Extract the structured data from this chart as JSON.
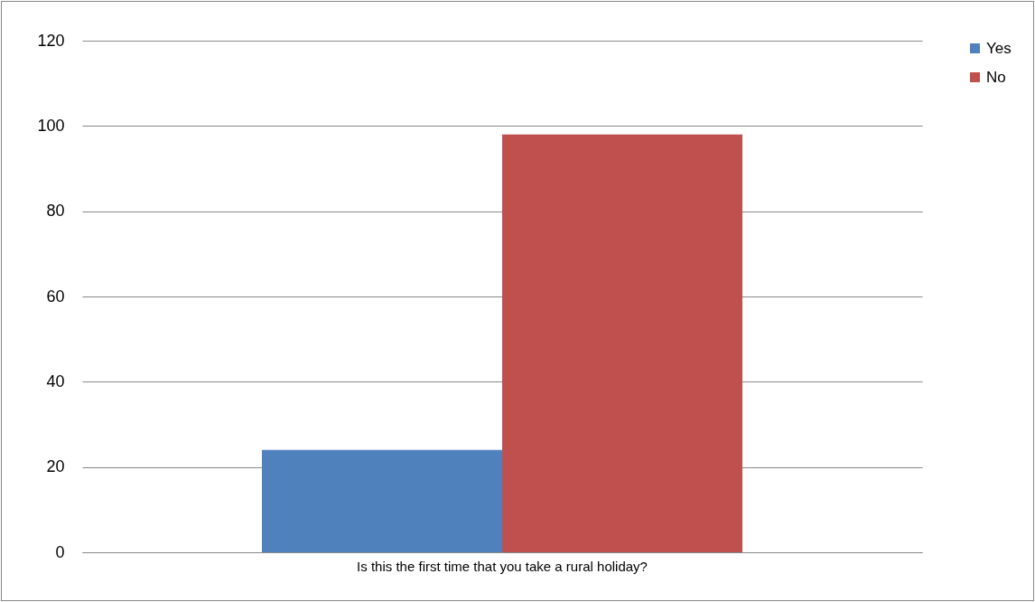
{
  "chart_data": {
    "type": "bar",
    "categories": [
      "Is this the first time that you take a rural holiday?"
    ],
    "series": [
      {
        "name": "Yes",
        "color": "#4f81bd",
        "values": [
          24
        ]
      },
      {
        "name": "No",
        "color": "#c0504d",
        "values": [
          98
        ]
      }
    ],
    "ylim": [
      0,
      120
    ],
    "yticks": [
      0,
      20,
      40,
      60,
      80,
      100,
      120
    ],
    "grid": "y",
    "legend": "right"
  }
}
